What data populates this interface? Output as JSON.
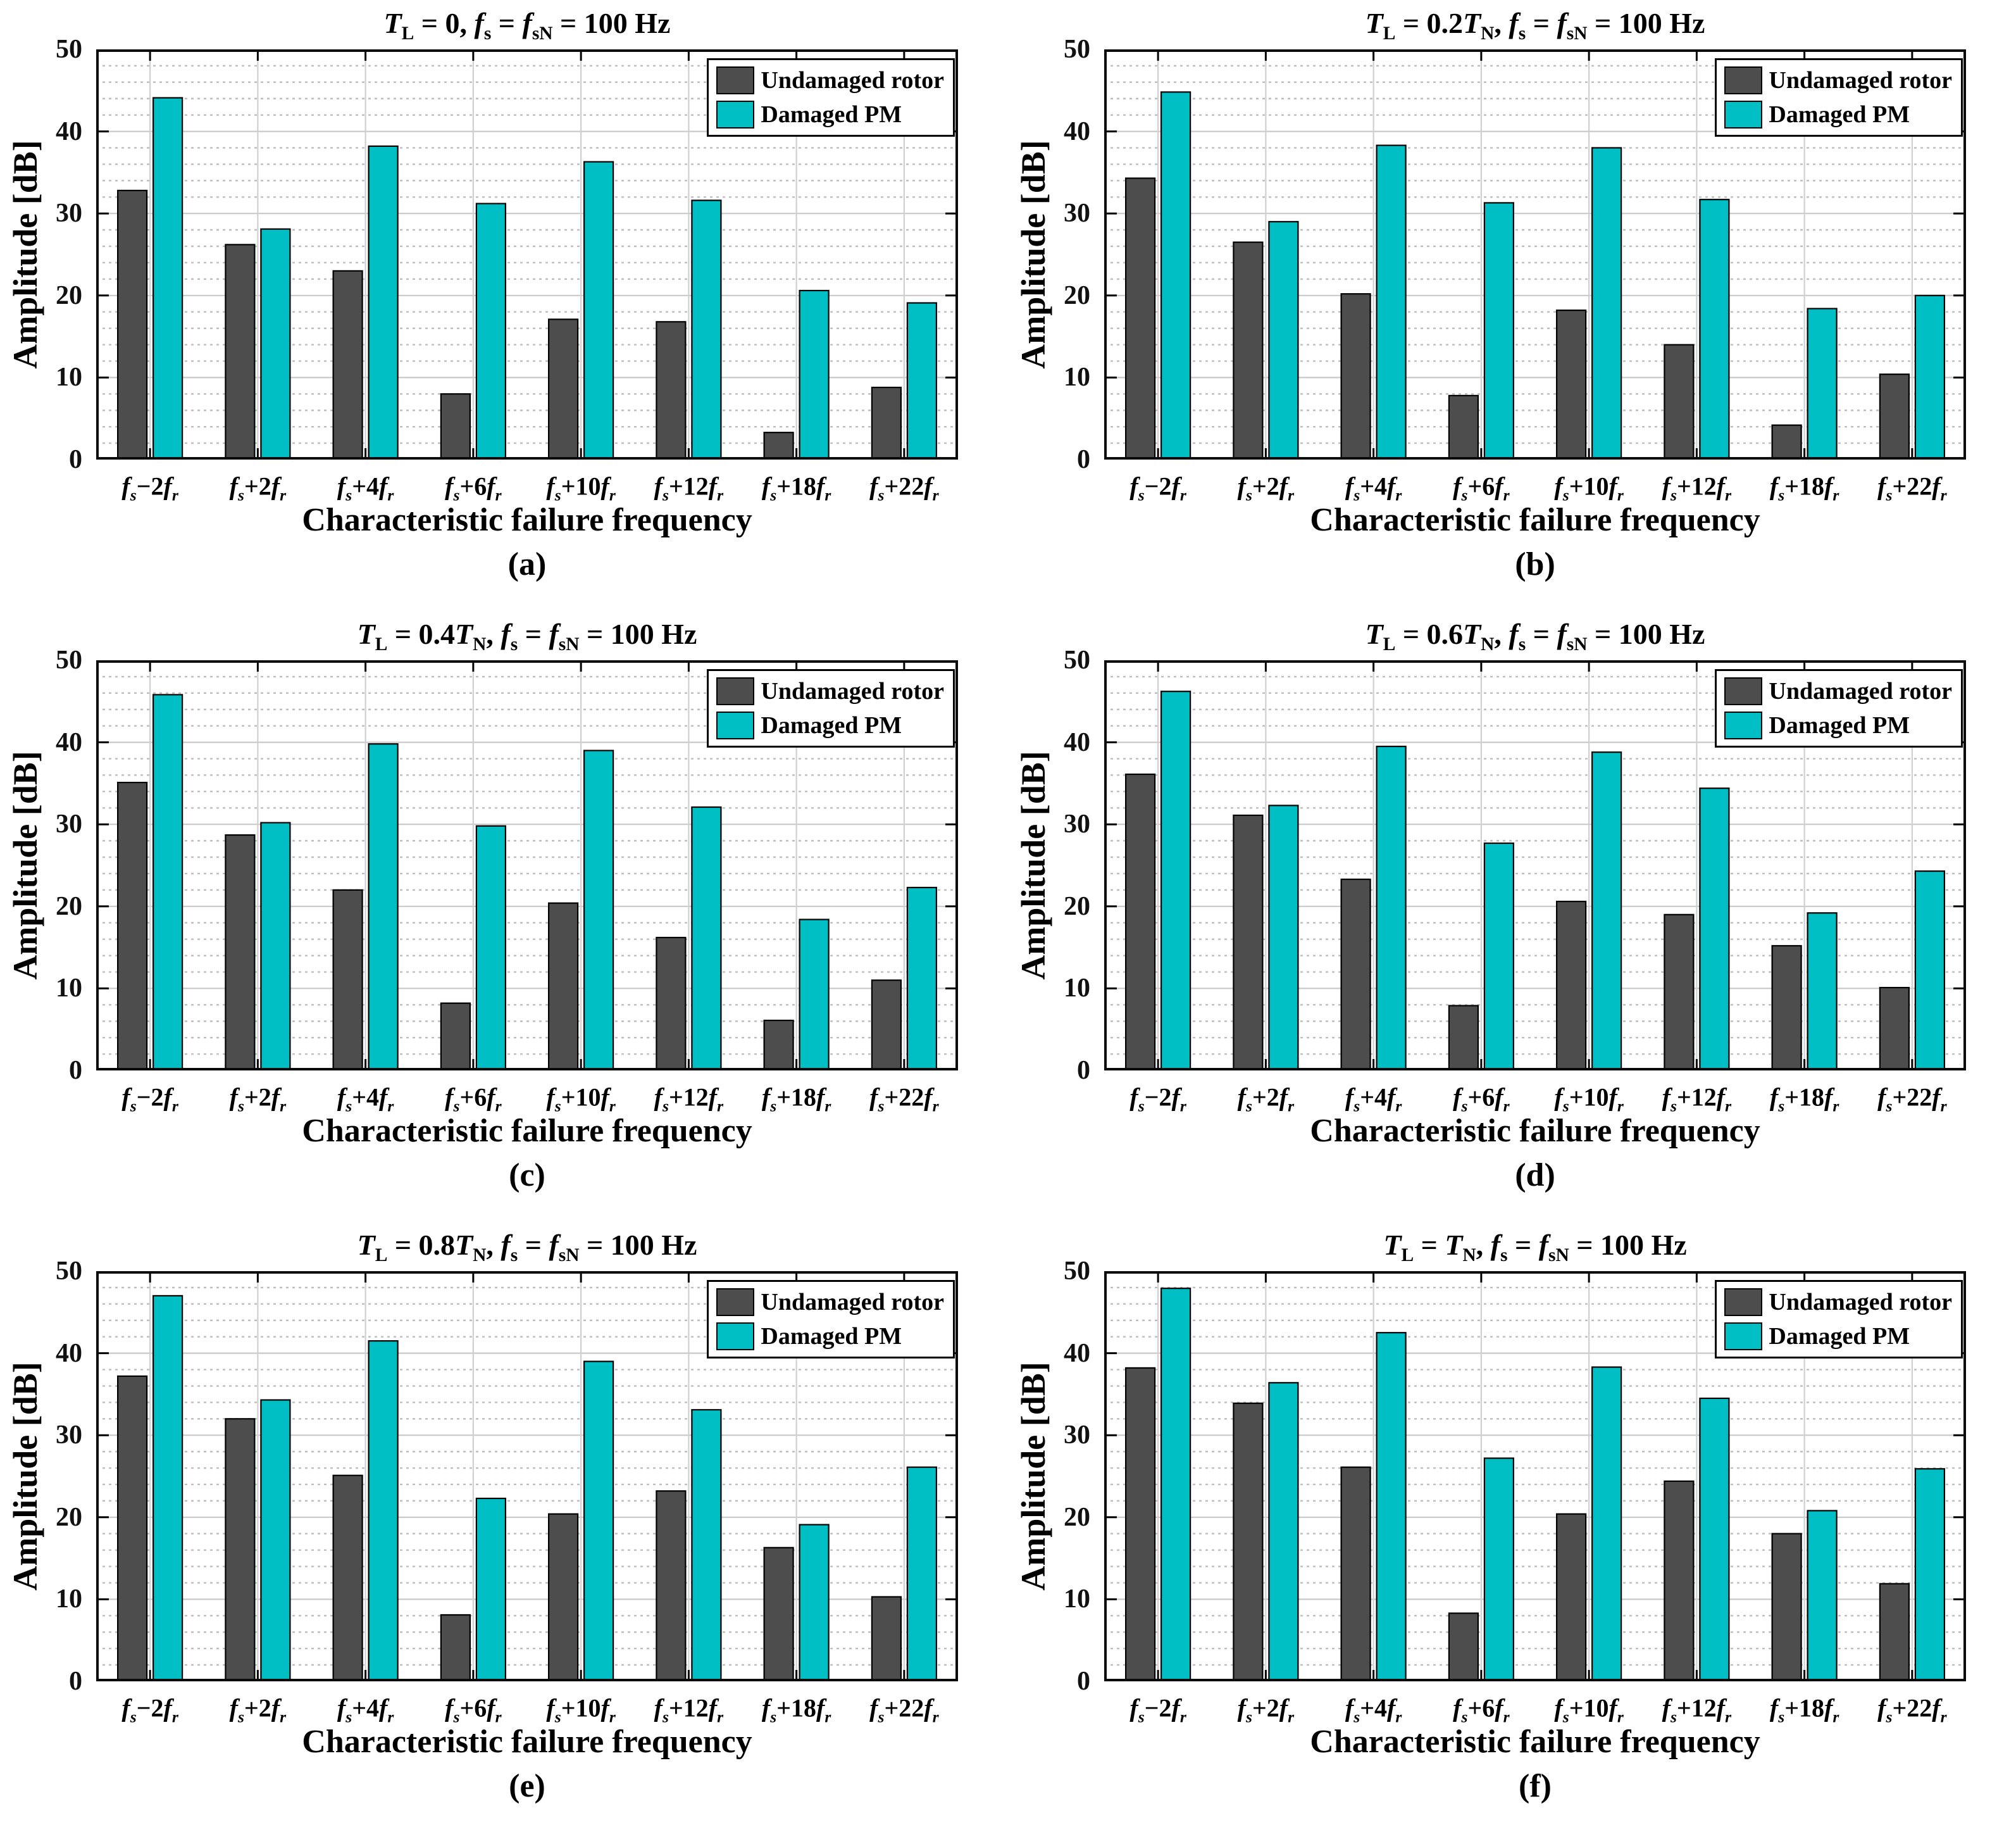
{
  "figure": {
    "ylabel": "Amplitude [dB]",
    "xlabel": "Characteristic failure frequency",
    "legend": [
      "Undamaged rotor",
      "Damaged PM"
    ],
    "colors": {
      "undamaged_rotor": "#4d4d4d",
      "damaged_pm": "#00bfc4"
    }
  },
  "chart_data": [
    {
      "id": "a",
      "type": "bar",
      "letter": "(a)",
      "title": "T_L = 0, f_s = f_sN = 100 Hz",
      "xlabel": "Characteristic failure frequency",
      "ylabel": "Amplitude [dB]",
      "ylim": [
        0,
        50
      ],
      "yticks": [
        0,
        10,
        20,
        30,
        40,
        50
      ],
      "grid": {
        "y_major": true,
        "y_minor_step": 2,
        "x_at_category_centers": true
      },
      "legend_position": "top-right",
      "categories": [
        "f_s−2f_r",
        "f_s+2f_r",
        "f_s+4f_r",
        "f_s+6f_r",
        "f_s+10f_r",
        "f_s+12f_r",
        "f_s+18f_r",
        "f_s+22f_r"
      ],
      "series": [
        {
          "name": "Undamaged rotor",
          "color": "#4d4d4d",
          "values": [
            32.8,
            26.2,
            23.0,
            8.0,
            17.1,
            16.8,
            3.3,
            8.8
          ]
        },
        {
          "name": "Damaged PM",
          "color": "#00bfc4",
          "values": [
            44.1,
            28.1,
            38.2,
            31.2,
            36.3,
            31.6,
            20.6,
            19.1
          ]
        }
      ]
    },
    {
      "id": "b",
      "type": "bar",
      "letter": "(b)",
      "title": "T_L = 0.2T_N, f_s = f_sN = 100 Hz",
      "xlabel": "Characteristic failure frequency",
      "ylabel": "Amplitude [dB]",
      "ylim": [
        0,
        50
      ],
      "yticks": [
        0,
        10,
        20,
        30,
        40,
        50
      ],
      "grid": {
        "y_major": true,
        "y_minor_step": 2,
        "x_at_category_centers": true
      },
      "legend_position": "top-right",
      "categories": [
        "f_s−2f_r",
        "f_s+2f_r",
        "f_s+4f_r",
        "f_s+6f_r",
        "f_s+10f_r",
        "f_s+12f_r",
        "f_s+18f_r",
        "f_s+22f_r"
      ],
      "series": [
        {
          "name": "Undamaged rotor",
          "color": "#4d4d4d",
          "values": [
            34.3,
            26.5,
            20.2,
            7.8,
            18.2,
            14.0,
            4.2,
            10.4
          ]
        },
        {
          "name": "Damaged PM",
          "color": "#00bfc4",
          "values": [
            44.8,
            29.0,
            38.3,
            31.3,
            38.0,
            31.7,
            18.4,
            20.0
          ]
        }
      ]
    },
    {
      "id": "c",
      "type": "bar",
      "letter": "(c)",
      "title": "T_L = 0.4T_N, f_s = f_sN = 100 Hz",
      "xlabel": "Characteristic failure frequency",
      "ylabel": "Amplitude [dB]",
      "ylim": [
        0,
        50
      ],
      "yticks": [
        0,
        10,
        20,
        30,
        40,
        50
      ],
      "grid": {
        "y_major": true,
        "y_minor_step": 2,
        "x_at_category_centers": true
      },
      "legend_position": "top-right",
      "categories": [
        "f_s−2f_r",
        "f_s+2f_r",
        "f_s+4f_r",
        "f_s+6f_r",
        "f_s+10f_r",
        "f_s+12f_r",
        "f_s+18f_r",
        "f_s+22f_r"
      ],
      "series": [
        {
          "name": "Undamaged rotor",
          "color": "#4d4d4d",
          "values": [
            35.1,
            28.7,
            22.0,
            8.2,
            20.4,
            16.2,
            6.1,
            11.0
          ]
        },
        {
          "name": "Damaged PM",
          "color": "#00bfc4",
          "values": [
            45.8,
            30.2,
            39.8,
            29.8,
            39.0,
            32.1,
            18.4,
            22.3
          ]
        }
      ]
    },
    {
      "id": "d",
      "type": "bar",
      "letter": "(d)",
      "title": "T_L = 0.6T_N, f_s = f_sN = 100 Hz",
      "xlabel": "Characteristic failure frequency",
      "ylabel": "Amplitude [dB]",
      "ylim": [
        0,
        50
      ],
      "yticks": [
        0,
        10,
        20,
        30,
        40,
        50
      ],
      "grid": {
        "y_major": true,
        "y_minor_step": 2,
        "x_at_category_centers": true
      },
      "legend_position": "top-right",
      "categories": [
        "f_s−2f_r",
        "f_s+2f_r",
        "f_s+4f_r",
        "f_s+6f_r",
        "f_s+10f_r",
        "f_s+12f_r",
        "f_s+18f_r",
        "f_s+22f_r"
      ],
      "series": [
        {
          "name": "Undamaged rotor",
          "color": "#4d4d4d",
          "values": [
            36.1,
            31.1,
            23.3,
            7.9,
            20.6,
            19.0,
            15.2,
            10.1
          ]
        },
        {
          "name": "Damaged PM",
          "color": "#00bfc4",
          "values": [
            46.2,
            32.3,
            39.5,
            27.7,
            38.8,
            34.4,
            19.2,
            24.3
          ]
        }
      ]
    },
    {
      "id": "e",
      "type": "bar",
      "letter": "(e)",
      "title": "T_L = 0.8T_N, f_s = f_sN = 100 Hz",
      "xlabel": "Characteristic failure frequency",
      "ylabel": "Amplitude [dB]",
      "ylim": [
        0,
        50
      ],
      "yticks": [
        0,
        10,
        20,
        30,
        40,
        50
      ],
      "grid": {
        "y_major": true,
        "y_minor_step": 2,
        "x_at_category_centers": true
      },
      "legend_position": "top-right",
      "categories": [
        "f_s−2f_r",
        "f_s+2f_r",
        "f_s+4f_r",
        "f_s+6f_r",
        "f_s+10f_r",
        "f_s+12f_r",
        "f_s+18f_r",
        "f_s+22f_r"
      ],
      "series": [
        {
          "name": "Undamaged rotor",
          "color": "#4d4d4d",
          "values": [
            37.2,
            32.0,
            25.1,
            8.1,
            20.4,
            23.2,
            16.3,
            10.3
          ]
        },
        {
          "name": "Damaged PM",
          "color": "#00bfc4",
          "values": [
            47.0,
            34.3,
            41.5,
            22.3,
            39.0,
            33.1,
            19.1,
            26.1
          ]
        }
      ]
    },
    {
      "id": "f",
      "type": "bar",
      "letter": "(f)",
      "title": "T_L = T_N, f_s = f_sN = 100 Hz",
      "xlabel": "Characteristic failure frequency",
      "ylabel": "Amplitude [dB]",
      "ylim": [
        0,
        50
      ],
      "yticks": [
        0,
        10,
        20,
        30,
        40,
        50
      ],
      "grid": {
        "y_major": true,
        "y_minor_step": 2,
        "x_at_category_centers": true
      },
      "legend_position": "top-right",
      "categories": [
        "f_s−2f_r",
        "f_s+2f_r",
        "f_s+4f_r",
        "f_s+6f_r",
        "f_s+10f_r",
        "f_s+12f_r",
        "f_s+18f_r",
        "f_s+22f_r"
      ],
      "series": [
        {
          "name": "Undamaged rotor",
          "color": "#4d4d4d",
          "values": [
            38.2,
            33.9,
            26.1,
            8.3,
            20.4,
            24.4,
            18.0,
            11.9
          ]
        },
        {
          "name": "Damaged PM",
          "color": "#00bfc4",
          "values": [
            47.9,
            36.4,
            42.5,
            27.2,
            38.3,
            34.5,
            20.8,
            25.9
          ]
        }
      ]
    }
  ]
}
